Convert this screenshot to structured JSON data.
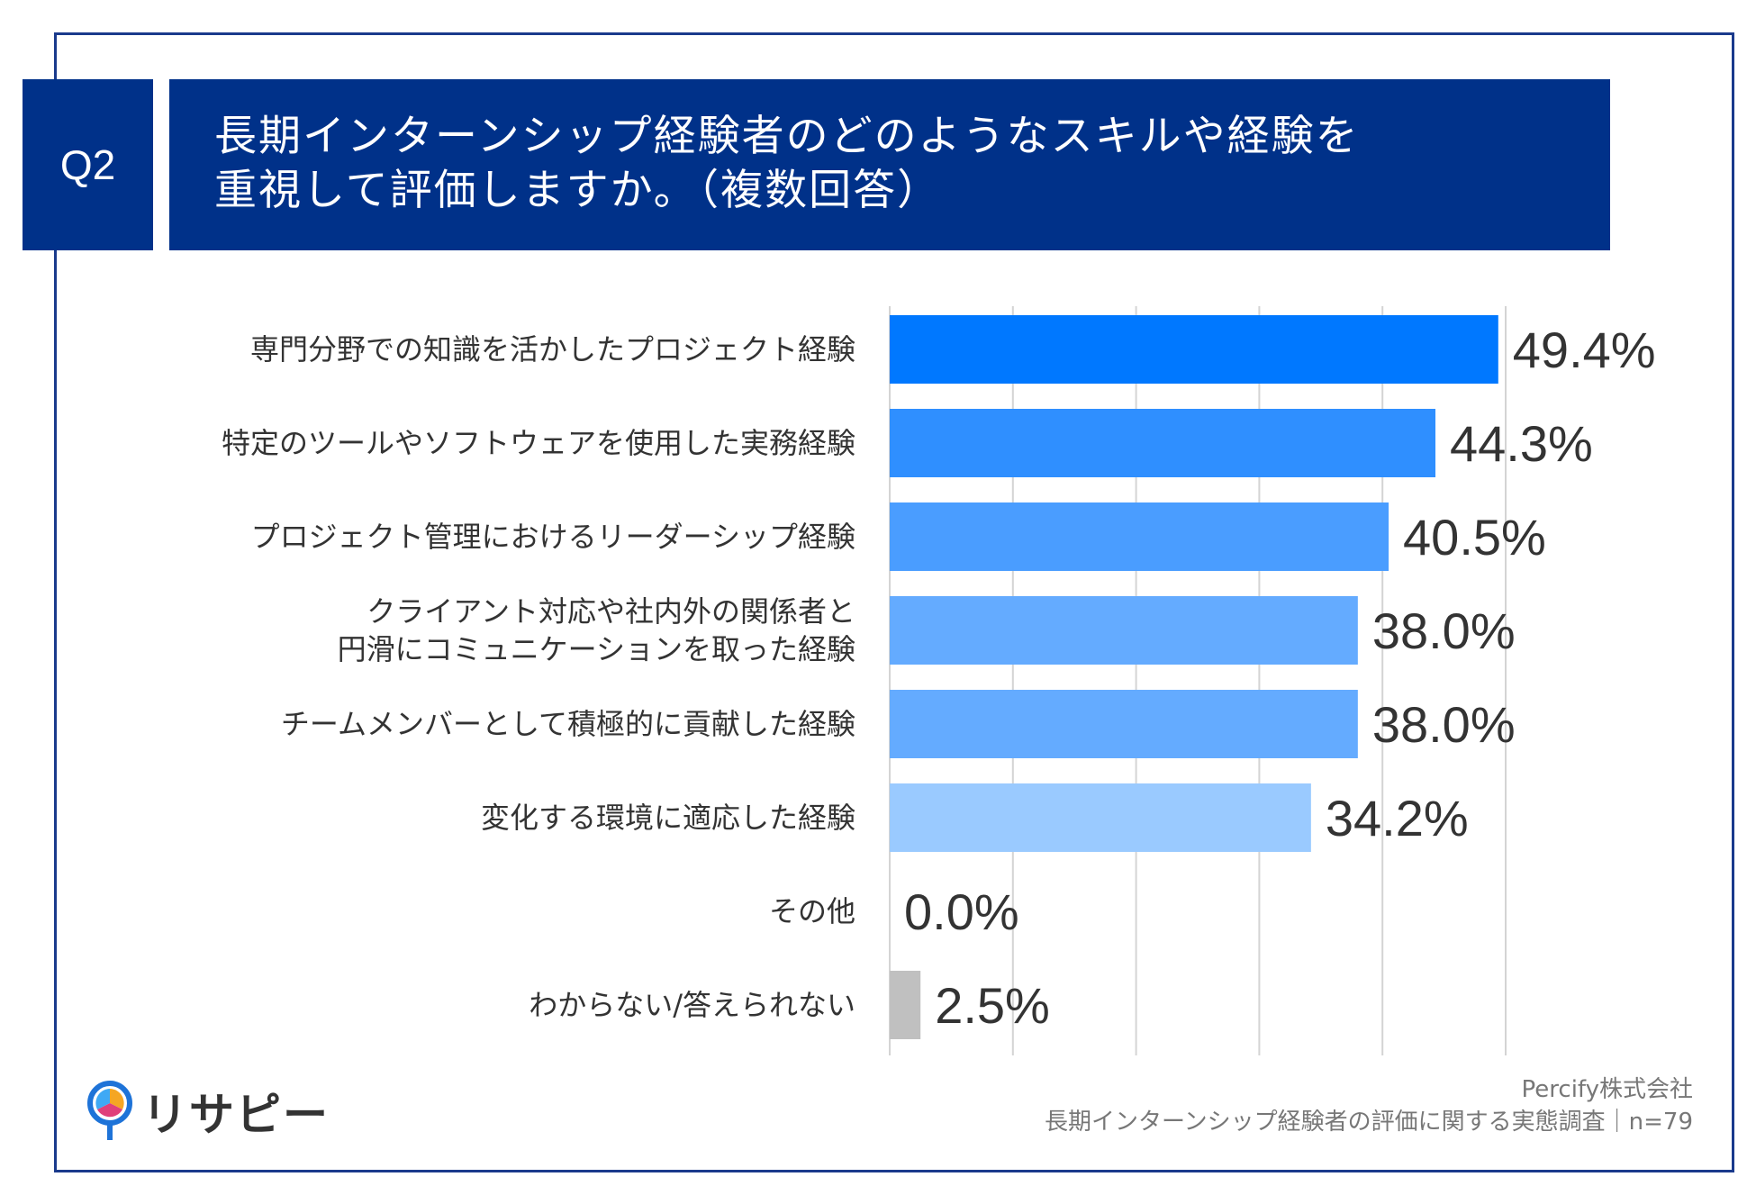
{
  "header": {
    "q_label": "Q2",
    "title_line1": "長期インターンシップ経験者のどのようなスキルや経験を",
    "title_line2": "重視して評価しますか。（複数回答）"
  },
  "footer": {
    "logo_text": "リサピー",
    "company": "Percify株式会社",
    "survey": "長期インターンシップ経験者の評価に関する実態調査｜n=79"
  },
  "chart_data": {
    "type": "bar",
    "orientation": "horizontal",
    "categories": [
      [
        "専門分野での知識を活かしたプロジェクト経験"
      ],
      [
        "特定のツールやソフトウェアを使用した実務経験"
      ],
      [
        "プロジェクト管理におけるリーダーシップ経験"
      ],
      [
        "クライアント対応や社内外の関係者と",
        "円滑にコミュニケーションを取った経験"
      ],
      [
        "チームメンバーとして積極的に貢献した経験"
      ],
      [
        "変化する環境に適応した経験"
      ],
      [
        "その他"
      ],
      [
        "わからない/答えられない"
      ]
    ],
    "values": [
      49.4,
      44.3,
      40.5,
      38.0,
      38.0,
      34.2,
      0.0,
      2.5
    ],
    "value_labels": [
      "49.4%",
      "44.3%",
      "40.5%",
      "38.0%",
      "38.0%",
      "34.2%",
      "0.0%",
      "2.5%"
    ],
    "colors": [
      "#0078ff",
      "#2f8fff",
      "#4a9dff",
      "#64abff",
      "#64abff",
      "#9acaff",
      "#9acaff",
      "#c0c0c0"
    ],
    "xlim": [
      0,
      50
    ],
    "grid": true
  }
}
